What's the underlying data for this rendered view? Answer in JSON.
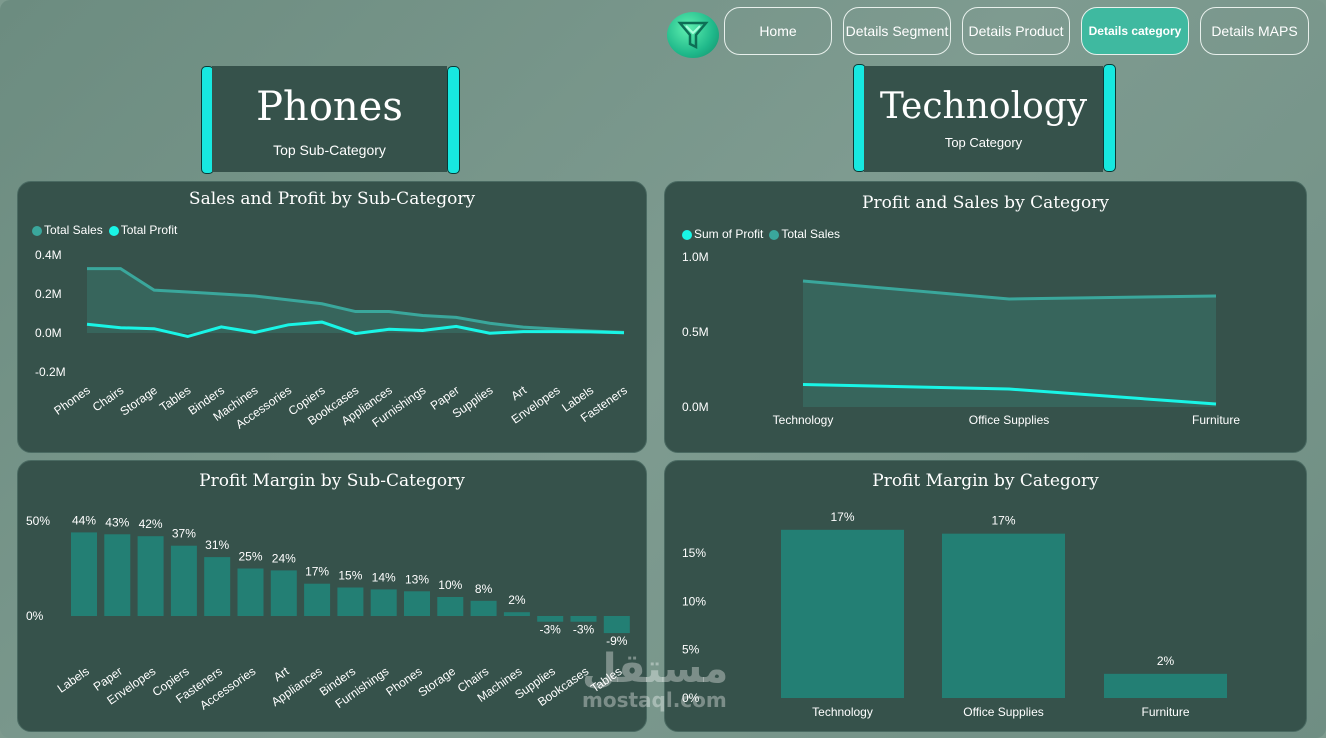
{
  "nav": {
    "items": [
      {
        "label": "Home",
        "active": false
      },
      {
        "label": "Details Segment",
        "active": false
      },
      {
        "label": "Details Product",
        "active": false
      },
      {
        "label": "Details category",
        "active": true
      },
      {
        "label": "Details MAPS",
        "active": false
      }
    ]
  },
  "cards": {
    "left": {
      "value": "Phones",
      "label": "Top Sub-Category"
    },
    "right": {
      "value": "Technology",
      "label": "Top Category"
    }
  },
  "colors": {
    "accent": "#17e8e0",
    "sales": "#3aa79c",
    "profit": "#19f5e6",
    "bar": "#237f74",
    "panel": "#36524b"
  },
  "panels": {
    "sales_profit_sub": {
      "title": "Sales and Profit by Sub-Category"
    },
    "profit_sales_cat": {
      "title": "Profit and Sales by Category"
    },
    "margin_sub": {
      "title": "Profit Margin by Sub-Category"
    },
    "margin_cat": {
      "title": "Profit Margin by Category"
    }
  },
  "watermark": {
    "arabic": "مستقل",
    "text": "mostaql.com"
  },
  "chart_data": [
    {
      "type": "area",
      "title": "Sales and Profit by Sub-Category",
      "legend": [
        "Total Sales",
        "Total Profit"
      ],
      "categories": [
        "Phones",
        "Chairs",
        "Storage",
        "Tables",
        "Binders",
        "Machines",
        "Accessories",
        "Copiers",
        "Bookcases",
        "Appliances",
        "Furnishings",
        "Paper",
        "Supplies",
        "Art",
        "Envelopes",
        "Labels",
        "Fasteners"
      ],
      "series": [
        {
          "name": "Total Sales",
          "values": [
            0.33,
            0.33,
            0.22,
            0.21,
            0.2,
            0.19,
            0.17,
            0.15,
            0.11,
            0.11,
            0.09,
            0.08,
            0.05,
            0.03,
            0.02,
            0.01,
            0.003
          ]
        },
        {
          "name": "Total Profit",
          "values": [
            0.045,
            0.027,
            0.022,
            -0.018,
            0.031,
            0.003,
            0.042,
            0.056,
            -0.003,
            0.019,
            0.013,
            0.034,
            -0.001,
            0.007,
            0.007,
            0.006,
            0.001
          ]
        }
      ],
      "y_ticks": [
        "0.4M",
        "0.2M",
        "0.0M",
        "-0.2M"
      ],
      "ylim": [
        -0.2,
        0.4
      ]
    },
    {
      "type": "area",
      "title": "Profit and Sales by Category",
      "legend": [
        "Sum of Profit",
        "Total Sales"
      ],
      "categories": [
        "Technology",
        "Office Supplies",
        "Furniture"
      ],
      "series": [
        {
          "name": "Total Sales",
          "values": [
            0.84,
            0.72,
            0.74
          ]
        },
        {
          "name": "Sum of Profit",
          "values": [
            0.15,
            0.12,
            0.02
          ]
        }
      ],
      "y_ticks": [
        "1.0M",
        "0.5M",
        "0.0M"
      ],
      "ylim": [
        0,
        1.0
      ]
    },
    {
      "type": "bar",
      "title": "Profit Margin by Sub-Category",
      "categories": [
        "Labels",
        "Paper",
        "Envelopes",
        "Copiers",
        "Fasteners",
        "Accessories",
        "Art",
        "Appliances",
        "Binders",
        "Furnishings",
        "Phones",
        "Storage",
        "Chairs",
        "Machines",
        "Supplies",
        "Bookcases",
        "Tables"
      ],
      "values": [
        44,
        43,
        42,
        37,
        31,
        25,
        24,
        17,
        15,
        14,
        13,
        10,
        8,
        2,
        -3,
        -3,
        -9
      ],
      "labels": [
        "44%",
        "43%",
        "42%",
        "37%",
        "31%",
        "25%",
        "24%",
        "17%",
        "15%",
        "14%",
        "13%",
        "10%",
        "8%",
        "2%",
        "-3%",
        "-3%",
        "-9%"
      ],
      "y_ticks": [
        "50%",
        "0%"
      ],
      "ylim": [
        -10,
        50
      ]
    },
    {
      "type": "bar",
      "title": "Profit Margin by Category",
      "categories": [
        "Technology",
        "Office Supplies",
        "Furniture"
      ],
      "values": [
        17.4,
        17.0,
        2.5
      ],
      "labels": [
        "17%",
        "17%",
        "2%"
      ],
      "y_ticks": [
        "15%",
        "10%",
        "5%",
        "0%"
      ],
      "ylim": [
        0,
        20
      ]
    }
  ]
}
